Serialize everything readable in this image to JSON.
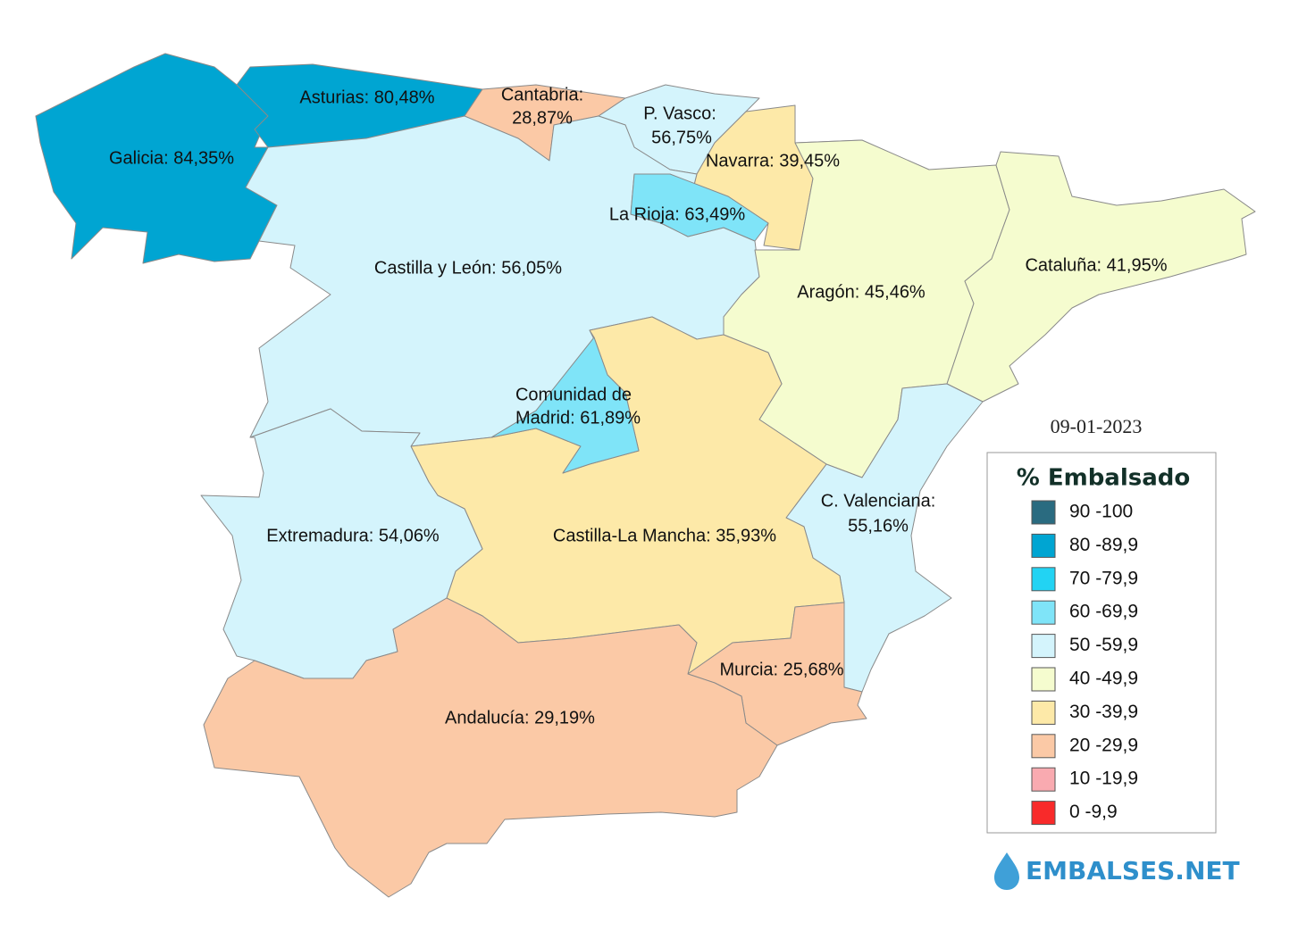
{
  "title": "% Embalsado",
  "date": "09-01-2023",
  "brand": "EMBALSES.NET",
  "regions": [
    {
      "label_lines": [
        "Galicia: 84,35%"
      ],
      "value": 84.35
    },
    {
      "label_lines": [
        "Asturias: 80,48%"
      ],
      "value": 80.48
    },
    {
      "label_lines": [
        "Cantabria:",
        "28,87%"
      ],
      "value": 28.87
    },
    {
      "label_lines": [
        "P. Vasco:",
        "56,75%"
      ],
      "value": 56.75
    },
    {
      "label_lines": [
        "Navarra: 39,45%"
      ],
      "value": 39.45
    },
    {
      "label_lines": [
        "La Rioja: 63,49%"
      ],
      "value": 63.49
    },
    {
      "label_lines": [
        "Castilla y León: 56,05%"
      ],
      "value": 56.05
    },
    {
      "label_lines": [
        "Comunidad de",
        "Madrid: 61,89%"
      ],
      "value": 61.89
    },
    {
      "label_lines": [
        "Aragón: 45,46%"
      ],
      "value": 45.46
    },
    {
      "label_lines": [
        "Cataluña: 41,95%"
      ],
      "value": 41.95
    },
    {
      "label_lines": [
        "C. Valenciana:",
        "55,16%"
      ],
      "value": 55.16
    },
    {
      "label_lines": [
        "Murcia: 25,68%"
      ],
      "value": 25.68
    },
    {
      "label_lines": [
        "Castilla-La Mancha: 35,93%"
      ],
      "value": 35.93
    },
    {
      "label_lines": [
        "Extremadura: 54,06%"
      ],
      "value": 54.06
    },
    {
      "label_lines": [
        "Andalucía: 29,19%"
      ],
      "value": 29.19
    }
  ],
  "legend": {
    "items": [
      {
        "label": "90 -100",
        "min": 90,
        "max": 100,
        "color": "#2a6b80"
      },
      {
        "label": "80 -89,9",
        "min": 80,
        "max": 89.9,
        "color": "#00a5d2"
      },
      {
        "label": "70 -79,9",
        "min": 70,
        "max": 79.9,
        "color": "#22d3f3"
      },
      {
        "label": "60 -69,9",
        "min": 60,
        "max": 69.9,
        "color": "#7fe4f8"
      },
      {
        "label": "50 -59,9",
        "min": 50,
        "max": 59.9,
        "color": "#d4f4fc"
      },
      {
        "label": "40 -49,9",
        "min": 40,
        "max": 49.9,
        "color": "#f5fccf"
      },
      {
        "label": "30 -39,9",
        "min": 30,
        "max": 39.9,
        "color": "#fde9a8"
      },
      {
        "label": "20 -29,9",
        "min": 20,
        "max": 29.9,
        "color": "#fbc9a6"
      },
      {
        "label": "10 -19,9",
        "min": 10,
        "max": 19.9,
        "color": "#f9aab0"
      },
      {
        "label": "0 -9,9",
        "min": 0,
        "max": 9.9,
        "color": "#f82a2a"
      }
    ]
  }
}
